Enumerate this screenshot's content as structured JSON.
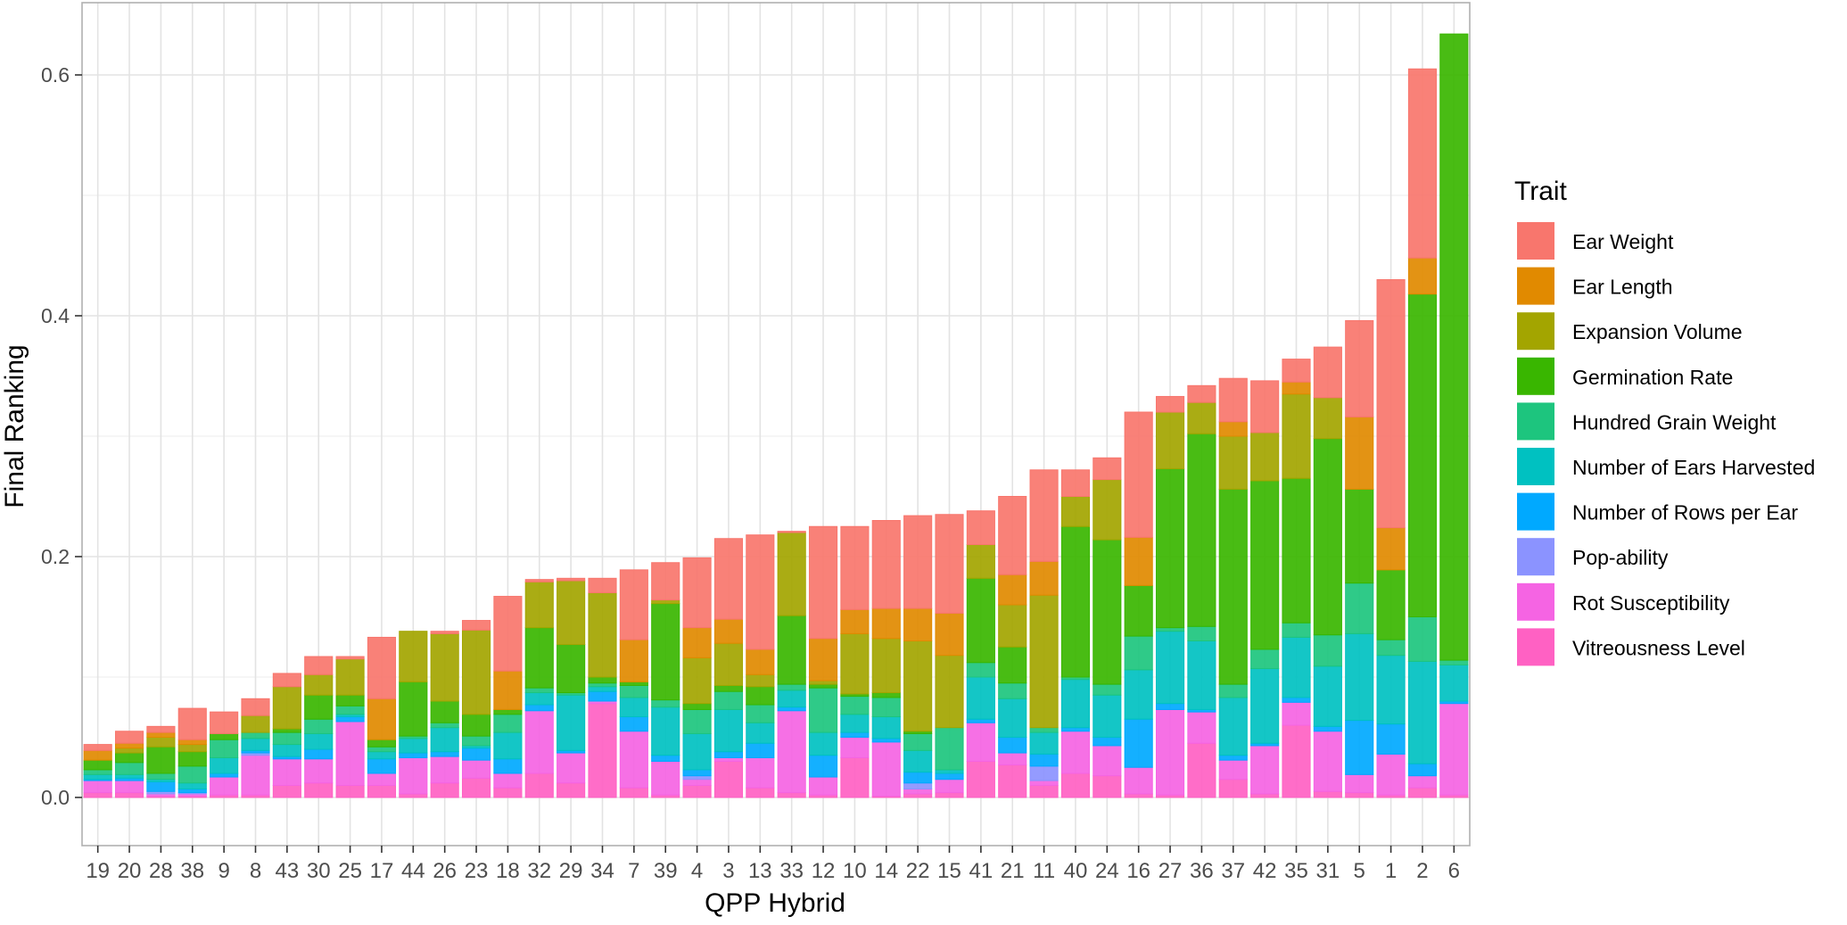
{
  "chart_data": {
    "type": "bar",
    "stacked": true,
    "xlabel": "QPP Hybrid",
    "ylabel": "Final Ranking",
    "ylim": [
      -0.04,
      0.66
    ],
    "yticks": [
      0.0,
      0.2,
      0.4,
      0.6
    ],
    "ytick_labels": [
      "0.0",
      "0.2",
      "0.4",
      "0.6"
    ],
    "grid": true,
    "legend_position": "right",
    "legend_title": "Trait",
    "categories": [
      "19",
      "20",
      "28",
      "38",
      "9",
      "8",
      "43",
      "30",
      "25",
      "17",
      "44",
      "26",
      "23",
      "18",
      "32",
      "29",
      "34",
      "7",
      "39",
      "4",
      "3",
      "13",
      "33",
      "12",
      "10",
      "14",
      "22",
      "15",
      "41",
      "21",
      "11",
      "40",
      "24",
      "16",
      "27",
      "36",
      "37",
      "42",
      "35",
      "31",
      "5",
      "1",
      "2",
      "6"
    ],
    "series": [
      {
        "name": "Vitreousness Level",
        "color": "#FF61C3",
        "values": [
          0.004,
          0.004,
          0.001,
          0.001,
          0.002,
          0.002,
          0.01,
          0.012,
          0.01,
          0.01,
          0.003,
          0.012,
          0.016,
          0.008,
          0.02,
          0.012,
          0.078,
          0.008,
          0.002,
          0.01,
          0.03,
          0.008,
          0.004,
          0.002,
          0.033,
          0.001,
          0.003,
          0.004,
          0.03,
          0.027,
          0.01,
          0.02,
          0.018,
          0.003,
          0.002,
          0.045,
          0.015,
          0.003,
          0.06,
          0.005,
          0.004,
          0.002,
          0.008,
          0.002
        ]
      },
      {
        "name": "Rot Susceptibility",
        "color": "#F564E3",
        "values": [
          0.01,
          0.01,
          0.002,
          0.002,
          0.015,
          0.033,
          0.022,
          0.02,
          0.053,
          0.01,
          0.03,
          0.022,
          0.015,
          0.012,
          0.052,
          0.025,
          0.002,
          0.047,
          0.028,
          0.005,
          0.003,
          0.025,
          0.068,
          0.015,
          0.017,
          0.045,
          0.004,
          0.011,
          0.032,
          0.01,
          0.004,
          0.035,
          0.025,
          0.022,
          0.071,
          0.026,
          0.016,
          0.04,
          0.019,
          0.05,
          0.015,
          0.034,
          0.01,
          0.076
        ]
      },
      {
        "name": "Pop-ability",
        "color": "#8B93FF",
        "values": [
          0.0,
          0.0,
          0.002,
          0.001,
          0.0,
          0.002,
          0.0,
          0.0,
          0.0,
          0.0,
          0.0,
          0.0,
          0.0,
          0.0,
          0.0,
          0.0,
          0.0,
          0.0,
          0.0,
          0.003,
          0.0,
          0.0,
          0.0,
          0.0,
          0.0,
          0.0,
          0.005,
          0.0,
          0.0,
          0.0,
          0.012,
          0.0,
          0.0,
          0.0,
          0.0,
          0.0,
          0.0,
          0.0,
          0.0,
          0.0,
          0.0,
          0.0,
          0.0,
          0.0
        ]
      },
      {
        "name": "Number of Rows per Ear",
        "color": "#00A9FF",
        "values": [
          0.001,
          0.002,
          0.008,
          0.003,
          0.003,
          0.002,
          0.002,
          0.008,
          0.004,
          0.012,
          0.004,
          0.004,
          0.01,
          0.012,
          0.005,
          0.002,
          0.008,
          0.012,
          0.005,
          0.005,
          0.005,
          0.012,
          0.003,
          0.018,
          0.004,
          0.003,
          0.009,
          0.005,
          0.003,
          0.013,
          0.01,
          0.003,
          0.007,
          0.04,
          0.005,
          0.002,
          0.004,
          0.002,
          0.004,
          0.004,
          0.045,
          0.025,
          0.01,
          0.002
        ]
      },
      {
        "name": "Number of Ears Harvested",
        "color": "#00C1C1",
        "values": [
          0.004,
          0.003,
          0.002,
          0.005,
          0.013,
          0.01,
          0.01,
          0.013,
          0.002,
          0.006,
          0.012,
          0.02,
          0.002,
          0.022,
          0.01,
          0.046,
          0.004,
          0.016,
          0.04,
          0.03,
          0.035,
          0.017,
          0.014,
          0.019,
          0.015,
          0.018,
          0.018,
          0.003,
          0.035,
          0.032,
          0.018,
          0.04,
          0.035,
          0.041,
          0.06,
          0.057,
          0.048,
          0.062,
          0.05,
          0.05,
          0.072,
          0.057,
          0.085,
          0.03
        ]
      },
      {
        "name": "Hundred Grain Weight",
        "color": "#1DC57E",
        "values": [
          0.004,
          0.01,
          0.005,
          0.014,
          0.015,
          0.005,
          0.01,
          0.012,
          0.007,
          0.004,
          0.002,
          0.004,
          0.008,
          0.015,
          0.004,
          0.002,
          0.003,
          0.01,
          0.006,
          0.02,
          0.015,
          0.015,
          0.005,
          0.037,
          0.015,
          0.016,
          0.014,
          0.035,
          0.012,
          0.013,
          0.004,
          0.002,
          0.009,
          0.028,
          0.003,
          0.012,
          0.011,
          0.016,
          0.012,
          0.026,
          0.042,
          0.013,
          0.037,
          0.004
        ]
      },
      {
        "name": "Germination Rate",
        "color": "#39B600",
        "values": [
          0.008,
          0.008,
          0.022,
          0.012,
          0.005,
          0.0,
          0.003,
          0.02,
          0.009,
          0.006,
          0.045,
          0.018,
          0.018,
          0.004,
          0.05,
          0.04,
          0.005,
          0.003,
          0.08,
          0.005,
          0.005,
          0.015,
          0.057,
          0.003,
          0.002,
          0.004,
          0.002,
          0.0,
          0.07,
          0.03,
          0.0,
          0.125,
          0.12,
          0.042,
          0.132,
          0.16,
          0.162,
          0.14,
          0.12,
          0.163,
          0.078,
          0.058,
          0.268,
          0.52
        ]
      },
      {
        "name": "Expansion Volume",
        "color": "#A3A500",
        "values": [
          0.0,
          0.004,
          0.008,
          0.006,
          0.0,
          0.014,
          0.035,
          0.017,
          0.03,
          0.0,
          0.042,
          0.056,
          0.07,
          0.0,
          0.038,
          0.053,
          0.07,
          0.0,
          0.003,
          0.038,
          0.035,
          0.01,
          0.069,
          0.003,
          0.05,
          0.045,
          0.075,
          0.06,
          0.028,
          0.035,
          0.11,
          0.025,
          0.05,
          0.0,
          0.047,
          0.026,
          0.044,
          0.04,
          0.07,
          0.034,
          0.0,
          0.0,
          0.0,
          0.0
        ]
      },
      {
        "name": "Ear Length",
        "color": "#E18A00",
        "values": [
          0.008,
          0.004,
          0.004,
          0.004,
          0.0,
          0.0,
          0.0,
          0.0,
          0.0,
          0.034,
          0.0,
          0.0,
          0.0,
          0.032,
          0.0,
          0.0,
          0.0,
          0.035,
          0.0,
          0.025,
          0.02,
          0.021,
          0.0,
          0.035,
          0.02,
          0.025,
          0.027,
          0.035,
          0.0,
          0.025,
          0.028,
          0.0,
          0.0,
          0.04,
          0.0,
          0.0,
          0.012,
          0.0,
          0.01,
          0.0,
          0.06,
          0.035,
          0.03,
          0.0
        ]
      },
      {
        "name": "Ear Weight",
        "color": "#F8766D",
        "values": [
          0.005,
          0.01,
          0.005,
          0.026,
          0.018,
          0.014,
          0.011,
          0.015,
          0.002,
          0.051,
          0.0,
          0.002,
          0.008,
          0.062,
          0.002,
          0.002,
          0.012,
          0.058,
          0.031,
          0.058,
          0.067,
          0.095,
          0.001,
          0.093,
          0.069,
          0.073,
          0.077,
          0.082,
          0.028,
          0.065,
          0.076,
          0.022,
          0.018,
          0.104,
          0.013,
          0.014,
          0.036,
          0.043,
          0.019,
          0.042,
          0.08,
          0.206,
          0.157,
          0.0
        ]
      }
    ]
  }
}
